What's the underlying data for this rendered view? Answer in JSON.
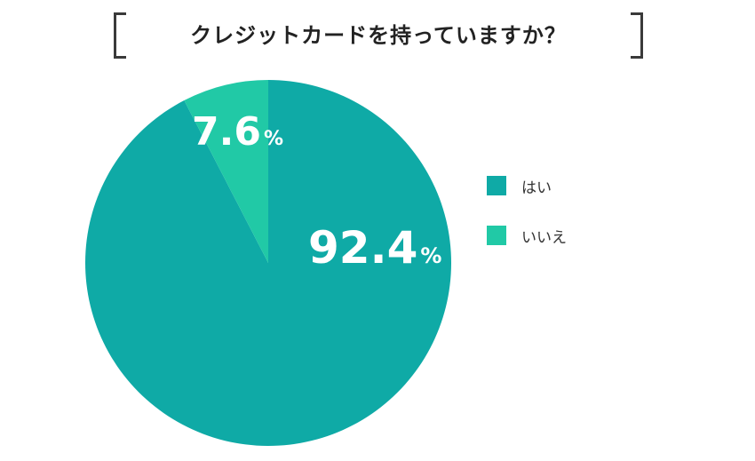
{
  "title": "クレジットカードを持っていますか？",
  "chart_data": {
    "type": "pie",
    "title": "クレジットカードを持っていますか？",
    "unit": "%",
    "legend_position": "right",
    "slices": [
      {
        "label": "はい",
        "value": 92.4,
        "value_text": "92.4",
        "color": "#0faaa6"
      },
      {
        "label": "いいえ",
        "value": 7.6,
        "value_text": "7.6",
        "color": "#21c9a6"
      }
    ]
  }
}
